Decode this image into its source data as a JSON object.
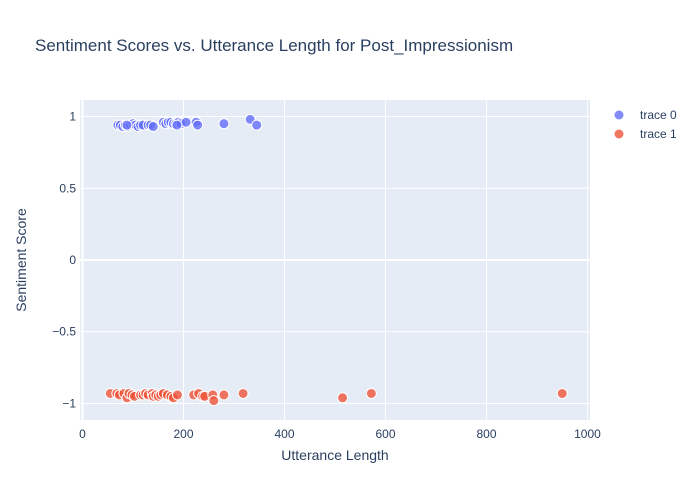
{
  "chart_data": {
    "type": "scatter",
    "title": "Sentiment Scores vs. Utterance Length for Post_Impressionism",
    "xlabel": "Utterance Length",
    "ylabel": "Sentiment Score",
    "xlim": [
      -5,
      1005
    ],
    "ylim": [
      -1.115,
      1.115
    ],
    "xticks": [
      0,
      200,
      400,
      600,
      800,
      1000
    ],
    "xtick_labels": [
      "0",
      "200",
      "400",
      "600",
      "800",
      "1000"
    ],
    "yticks": [
      1,
      0.5,
      0,
      -0.5,
      -1
    ],
    "ytick_labels": [
      "1",
      "0.5",
      "0",
      "−0.5",
      "−1"
    ],
    "grid": true,
    "legend_position": "top-right",
    "series": [
      {
        "name": "trace 0",
        "color": "#636efa",
        "points": [
          [
            70,
            0.94
          ],
          [
            75,
            0.94
          ],
          [
            80,
            0.93
          ],
          [
            85,
            0.94
          ],
          [
            90,
            0.93
          ],
          [
            95,
            0.94
          ],
          [
            100,
            0.95
          ],
          [
            105,
            0.94
          ],
          [
            110,
            0.93
          ],
          [
            115,
            0.94
          ],
          [
            120,
            0.94
          ],
          [
            130,
            0.94
          ],
          [
            135,
            0.94
          ],
          [
            140,
            0.93
          ],
          [
            160,
            0.96
          ],
          [
            165,
            0.95
          ],
          [
            170,
            0.96
          ],
          [
            175,
            0.96
          ],
          [
            180,
            0.95
          ],
          [
            185,
            0.95
          ],
          [
            190,
            0.96
          ],
          [
            195,
            0.95
          ],
          [
            205,
            0.96
          ],
          [
            225,
            0.96
          ],
          [
            228,
            0.94
          ],
          [
            280,
            0.95
          ],
          [
            332,
            0.98
          ],
          [
            345,
            0.94
          ],
          [
            88,
            0.94
          ],
          [
            187,
            0.94
          ]
        ]
      },
      {
        "name": "trace 1",
        "color": "#ef553b",
        "points": [
          [
            55,
            -0.93
          ],
          [
            68,
            -0.93
          ],
          [
            73,
            -0.94
          ],
          [
            82,
            -0.93
          ],
          [
            88,
            -0.96
          ],
          [
            92,
            -0.93
          ],
          [
            98,
            -0.94
          ],
          [
            103,
            -0.95
          ],
          [
            115,
            -0.94
          ],
          [
            120,
            -0.94
          ],
          [
            125,
            -0.93
          ],
          [
            130,
            -0.94
          ],
          [
            138,
            -0.93
          ],
          [
            140,
            -0.95
          ],
          [
            145,
            -0.94
          ],
          [
            150,
            -0.95
          ],
          [
            155,
            -0.94
          ],
          [
            160,
            -0.93
          ],
          [
            168,
            -0.94
          ],
          [
            175,
            -0.95
          ],
          [
            180,
            -0.96
          ],
          [
            188,
            -0.94
          ],
          [
            220,
            -0.94
          ],
          [
            230,
            -0.93
          ],
          [
            238,
            -0.95
          ],
          [
            242,
            -0.95
          ],
          [
            258,
            -0.94
          ],
          [
            260,
            -0.98
          ],
          [
            280,
            -0.94
          ],
          [
            318,
            -0.93
          ],
          [
            515,
            -0.96
          ],
          [
            572,
            -0.93
          ],
          [
            950,
            -0.93
          ]
        ]
      }
    ]
  }
}
